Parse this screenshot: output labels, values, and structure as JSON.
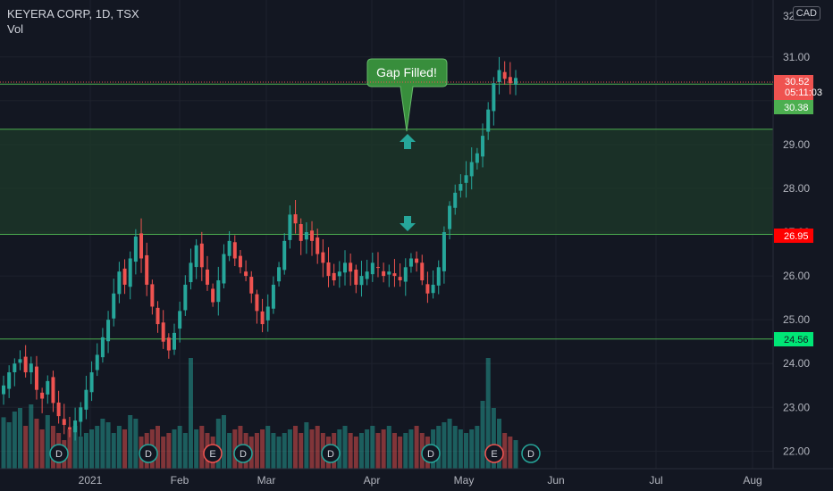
{
  "header": {
    "symbol_line": "KEYERA CORP, 1D, TSX",
    "volume_label": "Vol",
    "currency": "CAD",
    "scale_top_label": "32"
  },
  "colors": {
    "background": "#131722",
    "up": "#26a69a",
    "down": "#ef5350",
    "level_line": "#4caf50",
    "zone_fill": "#1e3a2a",
    "callout": "#388e3c",
    "axis_text": "#b2b5be"
  },
  "annotation": {
    "callout_text": "Gap Filled!",
    "arrow_up_icon": "arrow-up-icon",
    "arrow_down_icon": "arrow-down-icon"
  },
  "price_labels": {
    "last_price": "30.52",
    "countdown": "05:11:03",
    "level_high": "30.38",
    "level_mid": "26.95",
    "level_low": "24.56"
  },
  "chart_data": {
    "type": "candlestick",
    "y_axis": {
      "ylim": [
        21.6,
        32.3
      ],
      "ticks": [
        "22.00",
        "23.00",
        "24.00",
        "25.00",
        "26.00",
        "27.00",
        "28.00",
        "29.00",
        "30.00",
        "31.00"
      ]
    },
    "x_axis": {
      "range": [
        "2020-12-23",
        "2021-08-12"
      ],
      "tick_labels": [
        "2021",
        "Feb",
        "Mar",
        "Apr",
        "May",
        "Jun",
        "Jul",
        "Aug"
      ]
    },
    "horizontal_levels": [
      30.38,
      29.35,
      26.95,
      24.56
    ],
    "shaded_zone": [
      26.95,
      29.35
    ],
    "last_price": 30.52,
    "events": [
      {
        "label": "D",
        "type": "dividend"
      },
      {
        "label": "D",
        "type": "dividend"
      },
      {
        "label": "E",
        "type": "earnings"
      },
      {
        "label": "D",
        "type": "dividend"
      },
      {
        "label": "D",
        "type": "dividend"
      },
      {
        "label": "D",
        "type": "dividend"
      },
      {
        "label": "E",
        "type": "earnings"
      },
      {
        "label": "D",
        "type": "dividend"
      }
    ],
    "closes": [
      23.5,
      23.8,
      24.0,
      24.1,
      23.8,
      24.0,
      23.4,
      23.2,
      23.6,
      23.1,
      22.8,
      22.6,
      22.5,
      22.7,
      23.0,
      23.4,
      23.8,
      24.2,
      24.6,
      25.0,
      25.6,
      26.1,
      25.8,
      26.4,
      26.9,
      26.4,
      25.8,
      25.3,
      24.9,
      24.5,
      24.3,
      24.7,
      25.2,
      25.8,
      26.3,
      26.7,
      26.2,
      25.8,
      25.4,
      25.9,
      26.5,
      26.8,
      26.4,
      26.2,
      26.0,
      25.6,
      25.2,
      24.9,
      25.3,
      25.8,
      26.2,
      26.8,
      27.4,
      27.2,
      26.8,
      27.0,
      26.8,
      26.5,
      26.3,
      26.0,
      25.9,
      26.1,
      26.3,
      26.1,
      25.8,
      26.0,
      26.1,
      26.3,
      26.2,
      26.0,
      26.1,
      26.0,
      25.9,
      26.2,
      26.4,
      26.3,
      25.9,
      25.6,
      25.8,
      26.2,
      27.0,
      27.6,
      27.9,
      28.1,
      28.3,
      28.6,
      28.8,
      29.2,
      29.8,
      30.4,
      30.7,
      30.5,
      30.4,
      30.52
    ],
    "volumes": [
      0.72,
      0.65,
      0.8,
      0.85,
      0.6,
      0.9,
      0.7,
      0.55,
      0.75,
      0.6,
      0.5,
      0.4,
      0.55,
      0.6,
      0.45,
      0.5,
      0.55,
      0.6,
      0.7,
      0.65,
      0.5,
      0.6,
      0.55,
      0.75,
      0.7,
      0.45,
      0.5,
      0.55,
      0.6,
      0.45,
      0.5,
      0.55,
      0.6,
      0.5,
      1.55,
      0.55,
      0.6,
      0.5,
      0.45,
      0.7,
      0.75,
      0.5,
      0.55,
      0.6,
      0.5,
      0.45,
      0.5,
      0.55,
      0.6,
      0.5,
      0.45,
      0.5,
      0.55,
      0.6,
      0.5,
      0.65,
      0.55,
      0.6,
      0.5,
      0.45,
      0.5,
      0.55,
      0.6,
      0.5,
      0.45,
      0.5,
      0.55,
      0.6,
      0.5,
      0.55,
      0.6,
      0.5,
      0.45,
      0.5,
      0.55,
      0.6,
      0.5,
      0.45,
      0.55,
      0.6,
      0.65,
      0.7,
      0.6,
      0.55,
      0.5,
      0.55,
      0.6,
      0.95,
      1.55,
      0.85,
      0.7,
      0.5,
      0.45,
      0.4
    ]
  }
}
